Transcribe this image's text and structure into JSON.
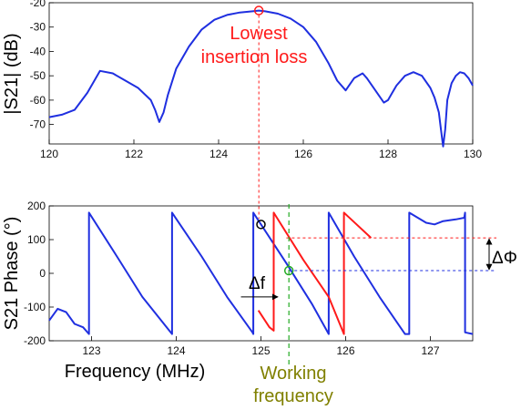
{
  "colors": {
    "trace": "#1f2fe0",
    "secondary": "#ff1a1a",
    "marker_green": "#22aa22",
    "annotation_red": "#ff1a1a",
    "annotation_olive": "#808000"
  },
  "chart_data": [
    {
      "type": "line",
      "id": "magnitude",
      "ylabel": "|S21| (dB)",
      "xlim": [
        120,
        130
      ],
      "ylim": [
        -78,
        -20
      ],
      "xticks": [
        "120",
        "122",
        "124",
        "126",
        "128",
        "130"
      ],
      "yticks": [
        "-20",
        "-30",
        "-40",
        "-50",
        "-60",
        "-70"
      ],
      "grid": false,
      "series": [
        {
          "x": [
            120.0,
            120.3,
            120.6,
            120.9,
            121.2,
            121.5,
            121.8,
            122.1,
            122.4,
            122.5,
            122.6,
            122.7,
            122.8,
            123.0,
            123.3,
            123.6,
            123.9,
            124.2,
            124.5,
            124.8,
            124.95,
            125.1,
            125.4,
            125.7,
            126.0,
            126.3,
            126.6,
            126.8,
            127.0,
            127.2,
            127.4,
            127.5,
            127.7,
            127.9,
            128.0,
            128.1,
            128.2,
            128.4,
            128.6,
            128.8,
            129.0,
            129.1,
            129.2,
            129.25,
            129.3,
            129.35,
            129.4,
            129.5,
            129.6,
            129.7,
            129.8,
            129.9,
            130.0
          ],
          "y": [
            -67,
            -66,
            -64,
            -57,
            -48,
            -49,
            -52,
            -55,
            -60,
            -64,
            -69,
            -65,
            -58,
            -47,
            -38,
            -31,
            -27,
            -25,
            -24,
            -23.5,
            -23.2,
            -23.5,
            -24.5,
            -26.5,
            -30,
            -36,
            -45,
            -52,
            -56,
            -51,
            -49,
            -51,
            -56,
            -61,
            -60,
            -57,
            -54,
            -50,
            -48.5,
            -50,
            -55,
            -59,
            -65,
            -72,
            -79,
            -72,
            -60,
            -53,
            -50,
            -48.5,
            -49,
            -51,
            -54
          ]
        }
      ],
      "annotations": [
        {
          "text_lines": [
            "Lowest",
            "insertion loss"
          ],
          "x": 124.95,
          "y": -23.2
        }
      ]
    },
    {
      "type": "line",
      "id": "phase",
      "xlabel": "Frequency (MHz)",
      "ylabel": "S21 Phase (°)",
      "xlim": [
        122.5,
        127.5
      ],
      "ylim": [
        -200,
        200
      ],
      "xticks": [
        "123",
        "124",
        "125",
        "126",
        "127"
      ],
      "yticks": [
        "200",
        "100",
        "0",
        "-100",
        "-200"
      ],
      "grid": false,
      "series": [
        {
          "color": "blue",
          "x": [
            122.5,
            122.6,
            122.7,
            122.8,
            122.9,
            122.97,
            122.97,
            123.3,
            123.6,
            123.95,
            123.95,
            124.3,
            124.6,
            124.9,
            124.91,
            124.91,
            125.3,
            125.6,
            125.8,
            125.8,
            126.1,
            126.4,
            126.7,
            126.75,
            126.75,
            126.95,
            127.05,
            127.15,
            127.3,
            127.4,
            127.41,
            127.41,
            127.5
          ],
          "y": [
            -140,
            -105,
            -115,
            -150,
            -160,
            -180,
            180,
            50,
            -70,
            -180,
            180,
            50,
            -70,
            -175,
            -180,
            180,
            30,
            -90,
            -180,
            180,
            50,
            -70,
            -180,
            -180,
            180,
            150,
            145,
            155,
            160,
            165,
            180,
            -175,
            -180
          ]
        },
        {
          "color": "red",
          "x": [
            124.97,
            125.1,
            125.15,
            125.15,
            125.5,
            125.8,
            125.98,
            125.98,
            126.3
          ],
          "y": [
            -110,
            -160,
            -170,
            180,
            40,
            -70,
            -180,
            180,
            105
          ]
        }
      ],
      "markers": [
        {
          "color": "black",
          "x": 125.0,
          "y": 145
        },
        {
          "color": "green",
          "x": 125.33,
          "y": 8
        }
      ],
      "reference_levels": [
        105,
        8
      ],
      "annotations": [
        {
          "text": "Δf",
          "x_from": 124.85,
          "x_to": 125.2,
          "y": -70
        },
        {
          "text": "ΔΦ",
          "y_from": 105,
          "y_to": 8
        },
        {
          "text_lines": [
            "Working",
            "frequency"
          ],
          "x": 125.33
        }
      ]
    }
  ]
}
